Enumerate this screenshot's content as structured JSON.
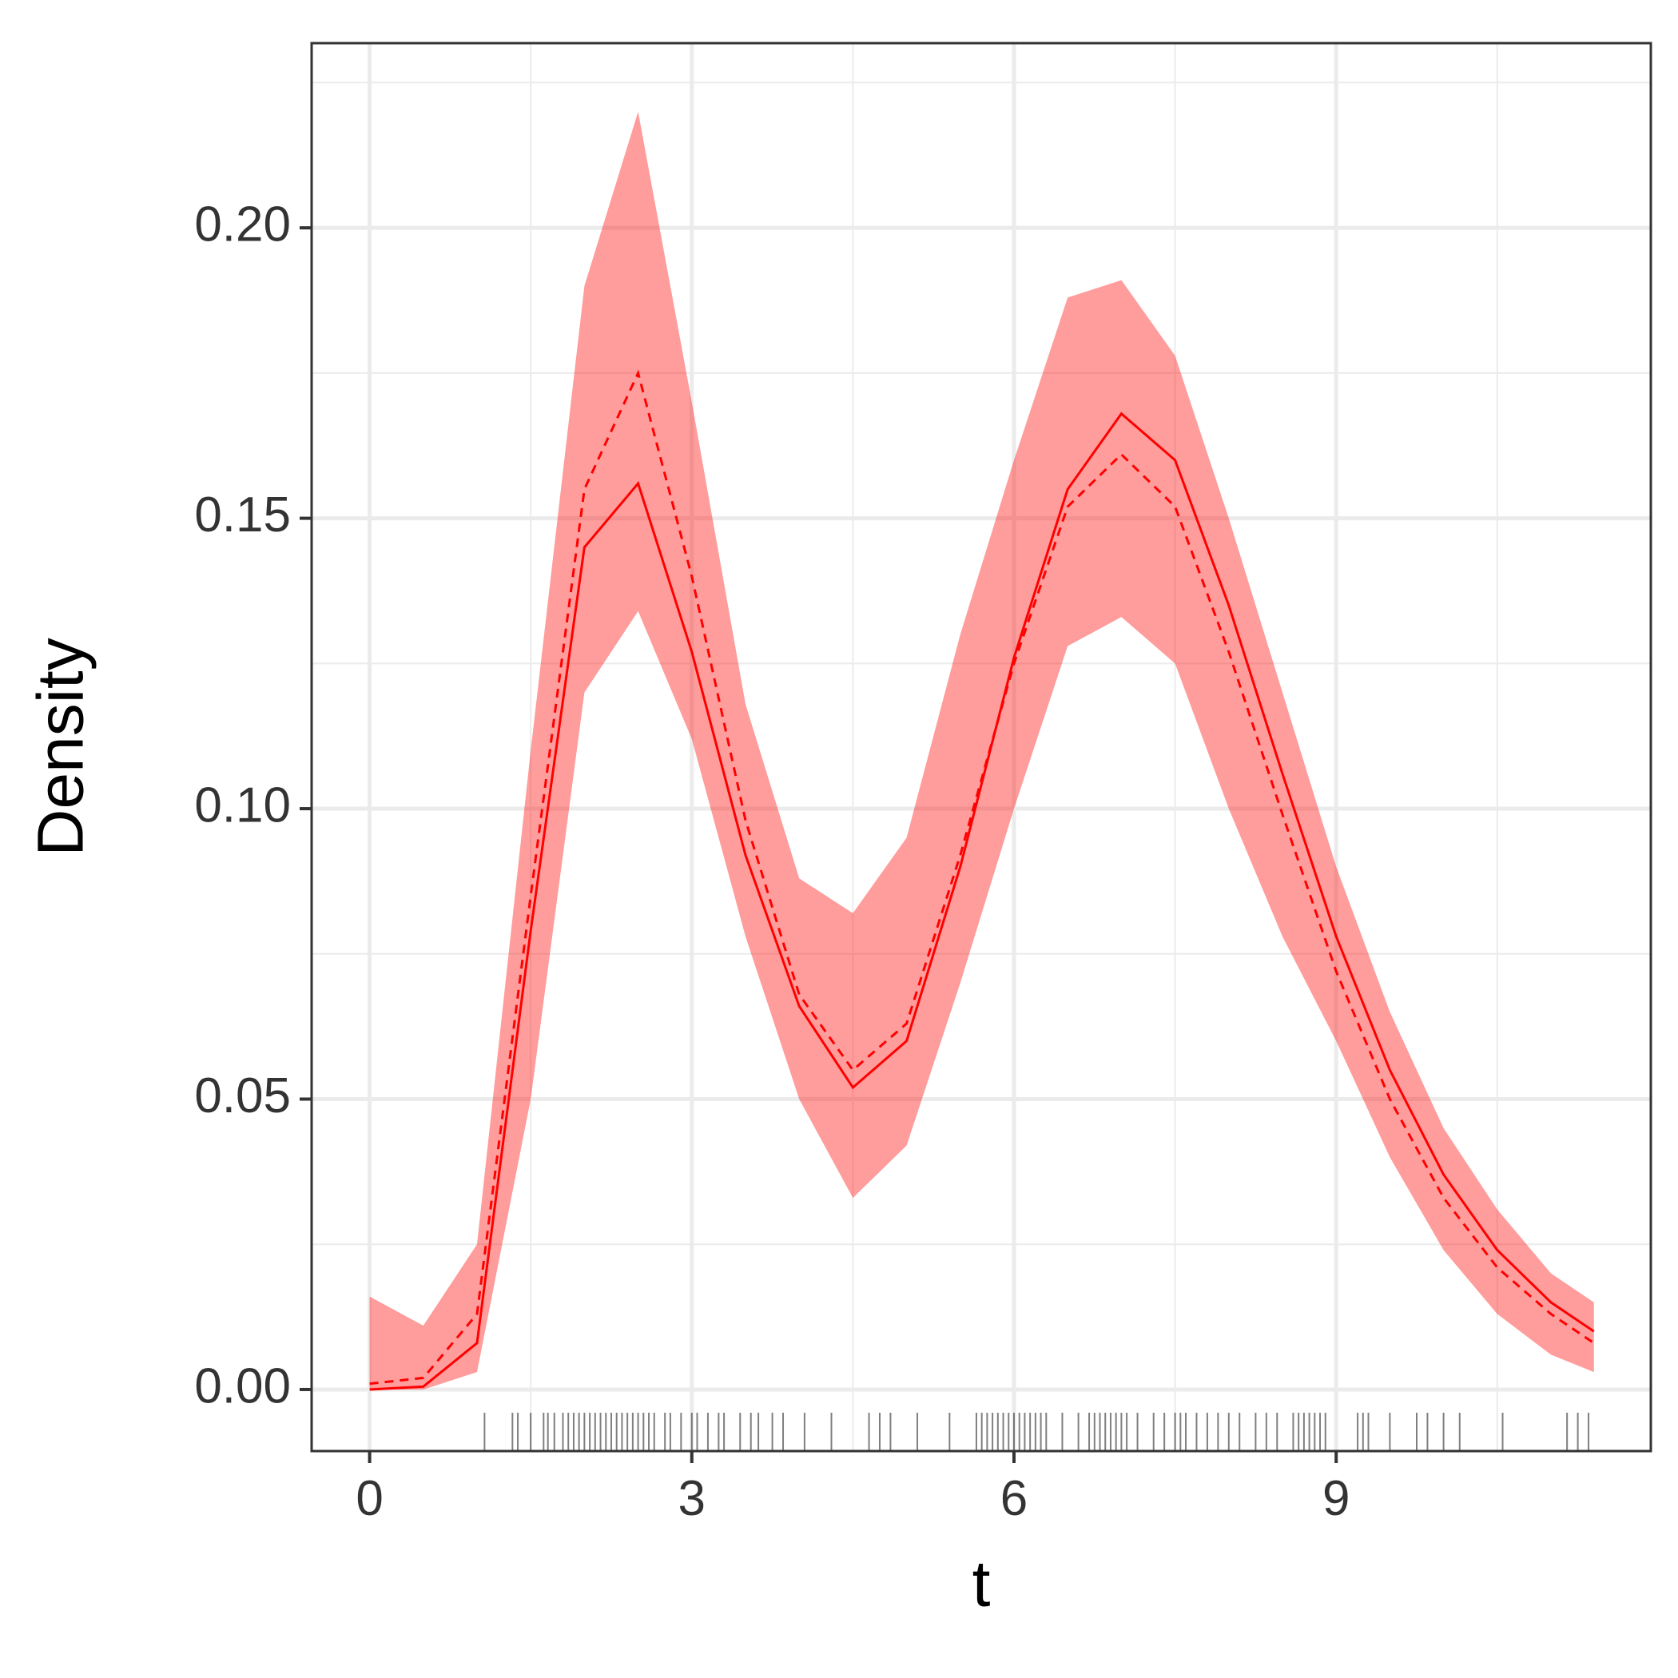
{
  "chart_data": {
    "type": "line",
    "xlabel": "t",
    "ylabel": "Density",
    "x": [
      0,
      0.5,
      1,
      1.5,
      2,
      2.5,
      3,
      3.5,
      4,
      4.5,
      5,
      5.5,
      6,
      6.5,
      7,
      7.5,
      8,
      8.5,
      9,
      9.5,
      10,
      10.5,
      11,
      11.4
    ],
    "series": [
      {
        "color": "#ff0000",
        "dashed": false,
        "values": [
          0,
          0.0005,
          0.008,
          0.079,
          0.145,
          0.156,
          0.127,
          0.092,
          0.066,
          0.052,
          0.06,
          0.09,
          0.126,
          0.155,
          0.168,
          0.16,
          0.135,
          0.106,
          0.078,
          0.055,
          0.037,
          0.024,
          0.015,
          0.01
        ]
      },
      {
        "color": "#ff0000",
        "dashed": true,
        "values": [
          0.001,
          0.002,
          0.013,
          0.085,
          0.155,
          0.175,
          0.14,
          0.098,
          0.068,
          0.055,
          0.063,
          0.092,
          0.125,
          0.152,
          0.161,
          0.152,
          0.127,
          0.099,
          0.072,
          0.05,
          0.033,
          0.021,
          0.013,
          0.008
        ]
      }
    ],
    "band": {
      "color": "#ff0000",
      "opacity": 0.39,
      "lower": [
        0,
        0,
        0.003,
        0.05,
        0.12,
        0.134,
        0.112,
        0.078,
        0.05,
        0.033,
        0.042,
        0.07,
        0.1,
        0.128,
        0.133,
        0.125,
        0.1,
        0.078,
        0.06,
        0.04,
        0.024,
        0.013,
        0.006,
        0.003
      ],
      "upper": [
        0.016,
        0.011,
        0.025,
        0.11,
        0.19,
        0.22,
        0.17,
        0.118,
        0.088,
        0.082,
        0.095,
        0.13,
        0.16,
        0.188,
        0.191,
        0.178,
        0.15,
        0.12,
        0.09,
        0.065,
        0.045,
        0.031,
        0.02,
        0.015
      ]
    },
    "rug": [
      1.07,
      1.33,
      1.38,
      1.5,
      1.62,
      1.66,
      1.72,
      1.8,
      1.85,
      1.9,
      1.95,
      2.0,
      2.05,
      2.1,
      2.15,
      2.2,
      2.25,
      2.3,
      2.35,
      2.4,
      2.45,
      2.5,
      2.55,
      2.6,
      2.65,
      2.75,
      2.8,
      2.9,
      3.0,
      3.05,
      3.15,
      3.25,
      3.3,
      3.45,
      3.55,
      3.62,
      3.75,
      3.85,
      4.05,
      4.3,
      4.65,
      4.75,
      4.85,
      5.1,
      5.4,
      5.65,
      5.7,
      5.75,
      5.8,
      5.85,
      5.9,
      5.95,
      6.0,
      6.05,
      6.1,
      6.15,
      6.2,
      6.25,
      6.3,
      6.45,
      6.6,
      6.7,
      6.75,
      6.8,
      6.85,
      6.9,
      6.95,
      7.0,
      7.05,
      7.15,
      7.3,
      7.4,
      7.5,
      7.55,
      7.6,
      7.7,
      7.8,
      7.9,
      8.0,
      8.1,
      8.25,
      8.35,
      8.45,
      8.6,
      8.65,
      8.7,
      8.75,
      8.8,
      8.85,
      8.9,
      9.2,
      9.25,
      9.3,
      9.5,
      9.75,
      9.85,
      10.0,
      10.15,
      10.55,
      11.15,
      11.25,
      11.35
    ],
    "rug_color": "#000000",
    "xlim": [
      -0.54,
      11.93
    ],
    "ylim": [
      -0.0106,
      0.2318
    ],
    "xticks": [
      0,
      3,
      6,
      9
    ],
    "yticks": [
      {
        "value": 0,
        "label": "0.00"
      },
      {
        "value": 0.05,
        "label": "0.05"
      },
      {
        "value": 0.1,
        "label": "0.10"
      },
      {
        "value": 0.15,
        "label": "0.15"
      },
      {
        "value": 0.2,
        "label": "0.20"
      }
    ],
    "xminor": [
      1.5,
      4.5,
      7.5,
      10.5
    ],
    "yminor": [
      0.025,
      0.075,
      0.125,
      0.175,
      0.225
    ],
    "grid": true
  }
}
